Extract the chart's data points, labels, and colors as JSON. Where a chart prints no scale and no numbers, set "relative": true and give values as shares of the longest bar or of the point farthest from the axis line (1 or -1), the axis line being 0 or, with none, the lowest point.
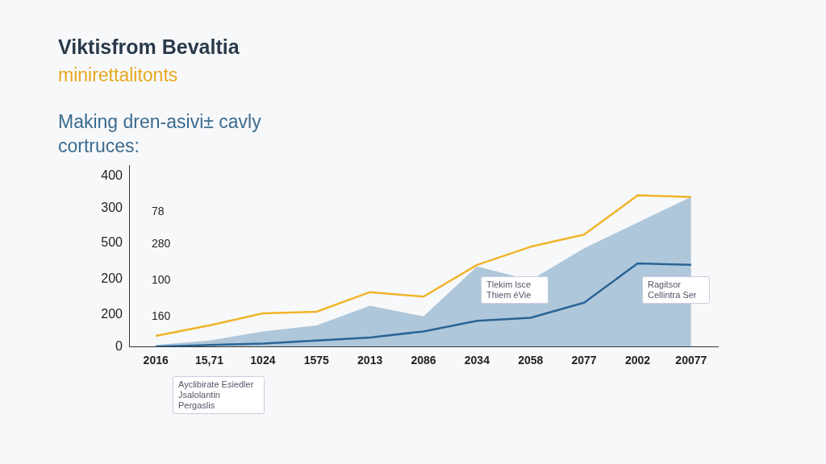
{
  "chart_data": {
    "type": "line",
    "title": "Viktisfrom Bevaltia",
    "subtitle": "minirettalitonts",
    "relative": true,
    "categories": [
      "2016",
      "15,71",
      "1024",
      "1575",
      "2013",
      "2086",
      "2034",
      "2058",
      "2077",
      "2002",
      "20077"
    ],
    "series": [
      {
        "type": "area",
        "color": "#7fa6c4",
        "values": [
          0.01,
          0.04,
          0.1,
          0.14,
          0.27,
          0.2,
          0.53,
          0.44,
          0.65,
          0.82,
          0.99
        ]
      },
      {
        "type": "line",
        "color": "#2a6496",
        "values": [
          0,
          0.01,
          0.02,
          0.04,
          0.06,
          0.1,
          0.17,
          0.19,
          0.29,
          0.55,
          0.54
        ]
      },
      {
        "type": "line",
        "color": "#f0b429",
        "values": [
          0.07,
          0.14,
          0.22,
          0.23,
          0.36,
          0.33,
          0.54,
          0.66,
          0.74,
          1,
          0.99
        ]
      }
    ],
    "annotations": [
      "Making dren-asivi± cavly cortruces:",
      "400",
      "300",
      "500",
      "200",
      "200",
      "0",
      "78",
      "280",
      "100",
      "160",
      "Tlekim lsce Thiem éVie",
      "Ragitsor Cellintra Ser",
      "Ayclibirate Esiedler Jsalolantin Pergaslis"
    ]
  }
}
